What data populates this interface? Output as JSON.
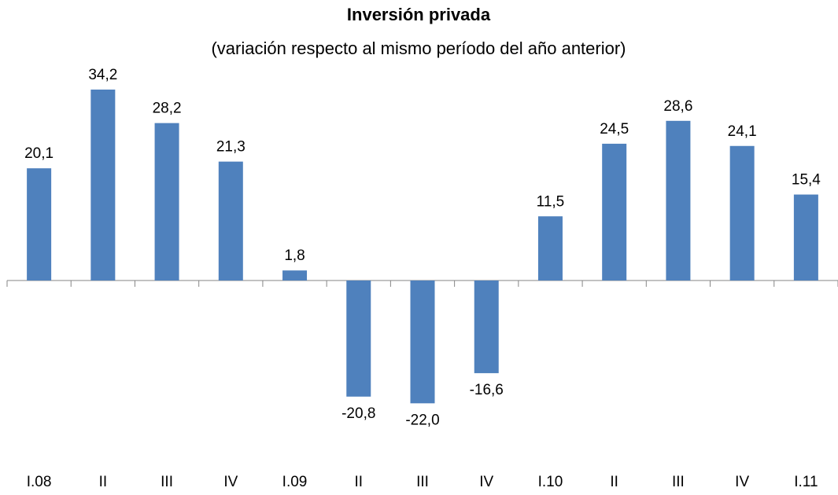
{
  "chart_data": {
    "type": "bar",
    "title": "Inversión privada",
    "subtitle": "(variación respecto al mismo período del año anterior)",
    "categories": [
      "I.08",
      "II",
      "III",
      "IV",
      "I.09",
      "II",
      "III",
      "IV",
      "I.10",
      "II",
      "III",
      "IV",
      "I.11"
    ],
    "values": [
      20.1,
      34.2,
      28.2,
      21.3,
      1.8,
      -20.8,
      -22.0,
      -16.6,
      11.5,
      24.5,
      28.6,
      24.1,
      15.4
    ],
    "value_labels": [
      "20,1",
      "34,2",
      "28,2",
      "21,3",
      "1,8",
      "-20,8",
      "-22,0",
      "-16,6",
      "11,5",
      "24,5",
      "28,6",
      "24,1",
      "15,4"
    ],
    "color": "#4f81bd"
  }
}
